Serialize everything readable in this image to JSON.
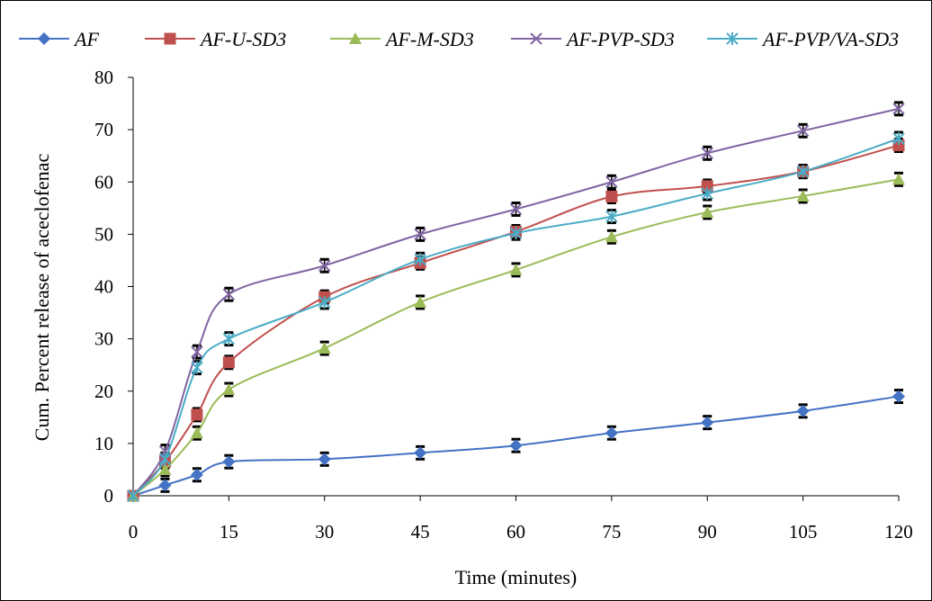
{
  "chart_data": {
    "type": "line",
    "title": "",
    "xlabel": "Time (minutes)",
    "ylabel": "Cum. Percent release of aceclofenac",
    "x": [
      0,
      5,
      10,
      15,
      30,
      45,
      60,
      75,
      90,
      105,
      120
    ],
    "x_ticks": [
      "0",
      "15",
      "30",
      "45",
      "60",
      "75",
      "90",
      "105",
      "120"
    ],
    "y_ticks": [
      "0",
      "10",
      "20",
      "30",
      "40",
      "50",
      "60",
      "70",
      "80"
    ],
    "xlim": [
      0,
      120
    ],
    "ylim": [
      0,
      80
    ],
    "grid": false,
    "legend_position": "top",
    "error_bars": 1.2,
    "series": [
      {
        "name": "AF",
        "color": "#4472C4",
        "marker": "diamond",
        "values": [
          0,
          2,
          4,
          6.5,
          7,
          8.2,
          9.6,
          12,
          14,
          16.2,
          19
        ]
      },
      {
        "name": "AF-U-SD3",
        "color": "#C0504D",
        "marker": "square",
        "values": [
          0,
          6.5,
          15.5,
          25.5,
          38,
          44.5,
          50.5,
          57.2,
          59.2,
          62,
          67
        ]
      },
      {
        "name": "AF-M-SD3",
        "color": "#9BBB59",
        "marker": "triangle",
        "values": [
          0,
          5,
          12,
          20.3,
          28.2,
          37,
          43.2,
          49.5,
          54.2,
          57.3,
          60.5
        ]
      },
      {
        "name": "AF-PVP-SD3",
        "color": "#8064A2",
        "marker": "x",
        "values": [
          0,
          8.5,
          27.5,
          38.5,
          44,
          50,
          54.8,
          60,
          65.5,
          69.8,
          74
        ]
      },
      {
        "name": "AF-PVP/VA-SD3",
        "color": "#4BACC6",
        "marker": "star",
        "values": [
          0,
          7,
          24.5,
          30,
          37,
          45.2,
          50.2,
          53.4,
          57.8,
          62,
          68.3
        ]
      }
    ]
  }
}
